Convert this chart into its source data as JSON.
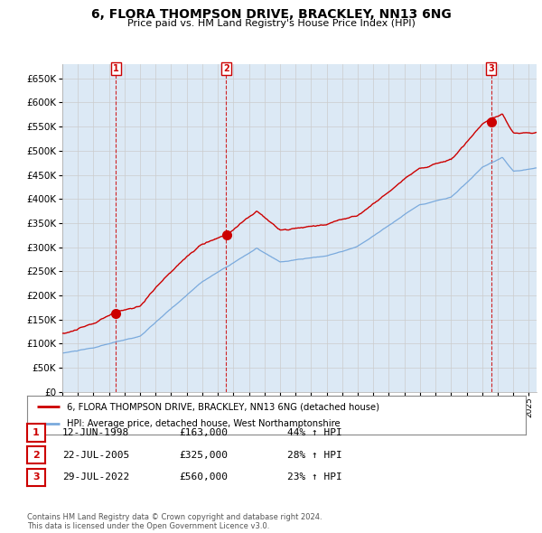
{
  "title": "6, FLORA THOMPSON DRIVE, BRACKLEY, NN13 6NG",
  "subtitle": "Price paid vs. HM Land Registry's House Price Index (HPI)",
  "ylim": [
    0,
    680000
  ],
  "yticks": [
    0,
    50000,
    100000,
    150000,
    200000,
    250000,
    300000,
    350000,
    400000,
    450000,
    500000,
    550000,
    600000,
    650000
  ],
  "xlim_start": 1995.0,
  "xlim_end": 2025.5,
  "grid_color": "#cccccc",
  "bg_color": "#dce9f5",
  "red_color": "#cc0000",
  "blue_color": "#7aaadd",
  "purchases": [
    {
      "date_num": 1998.45,
      "price": 163000,
      "label": "1"
    },
    {
      "date_num": 2005.54,
      "price": 325000,
      "label": "2"
    },
    {
      "date_num": 2022.57,
      "price": 560000,
      "label": "3"
    }
  ],
  "legend_line1": "6, FLORA THOMPSON DRIVE, BRACKLEY, NN13 6NG (detached house)",
  "legend_line2": "HPI: Average price, detached house, West Northamptonshire",
  "table_rows": [
    {
      "num": "1",
      "date": "12-JUN-1998",
      "price": "£163,000",
      "hpi": "44% ↑ HPI"
    },
    {
      "num": "2",
      "date": "22-JUL-2005",
      "price": "£325,000",
      "hpi": "28% ↑ HPI"
    },
    {
      "num": "3",
      "date": "29-JUL-2022",
      "price": "£560,000",
      "hpi": "23% ↑ HPI"
    }
  ],
  "footnote": "Contains HM Land Registry data © Crown copyright and database right 2024.\nThis data is licensed under the Open Government Licence v3.0."
}
